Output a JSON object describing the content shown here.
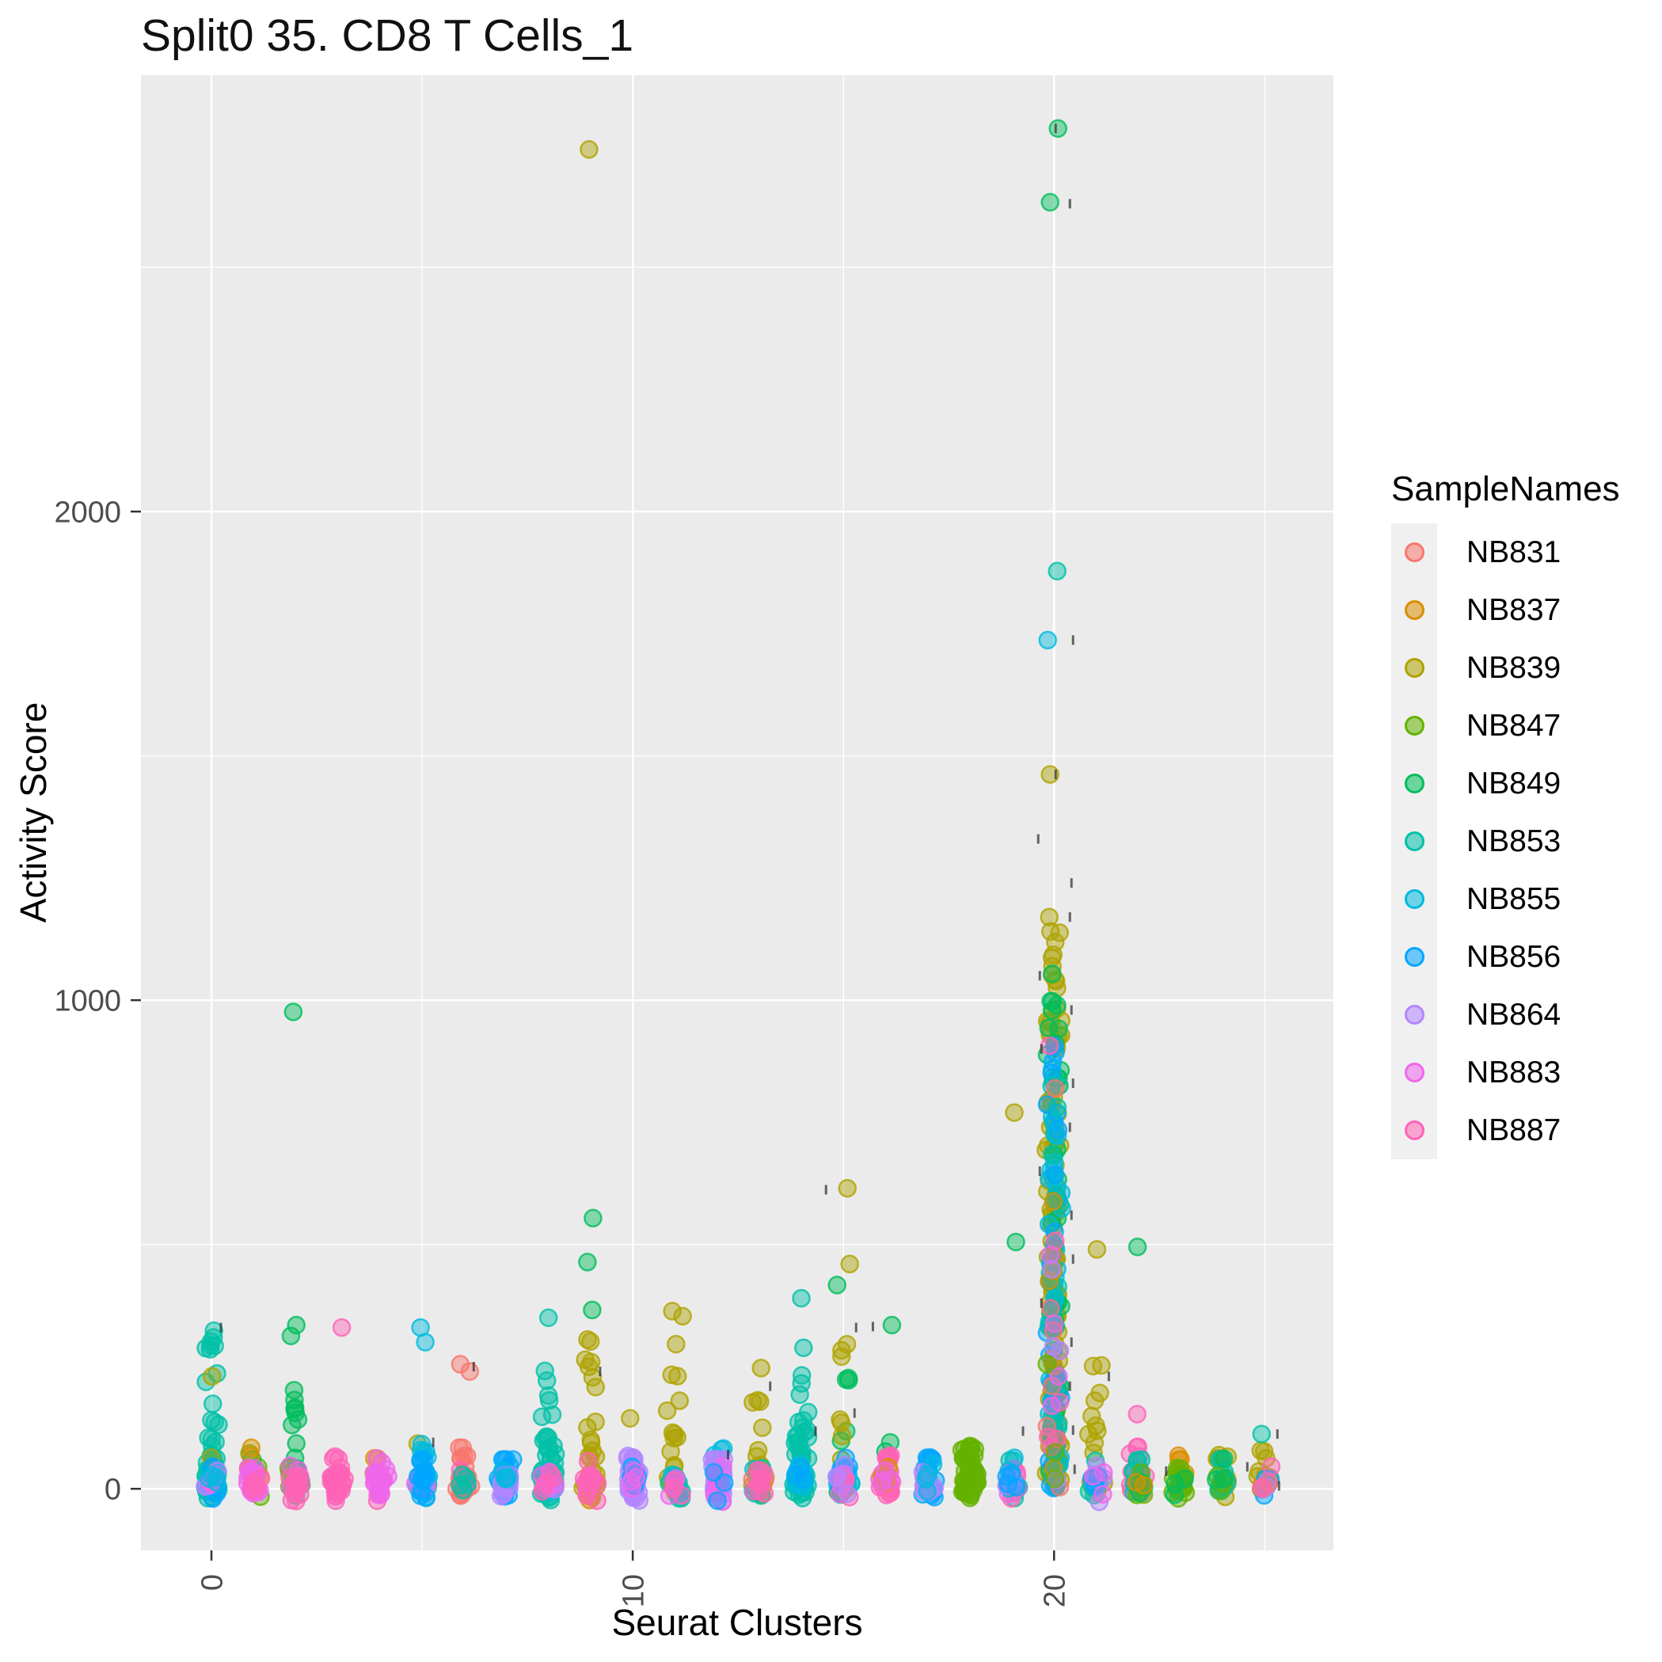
{
  "chart_data": {
    "type": "scatter",
    "variant": "jitter-by-cluster",
    "title": "Split0 35. CD8 T Cells_1",
    "xlabel": "Seurat Clusters",
    "ylabel": "Activity Score",
    "legend_title": "SampleNames",
    "legend_position": "right",
    "grid": "on",
    "x_ticks": [
      {
        "v": 0,
        "label": "0"
      },
      {
        "v": 10,
        "label": "10"
      },
      {
        "v": 20,
        "label": "20"
      }
    ],
    "x_minor_ticks": [
      5,
      15,
      25
    ],
    "y_ticks": [
      {
        "v": 0,
        "label": "0"
      },
      {
        "v": 1000,
        "label": "1000"
      },
      {
        "v": 2000,
        "label": "2000"
      }
    ],
    "y_minor_ticks": [
      500,
      1500,
      2500
    ],
    "x_range": [
      -1.673,
      26.63
    ],
    "y_range": [
      -126,
      2893
    ],
    "style": {
      "panel_bg": "#EBEBEB",
      "grid_color": "#FFFFFF",
      "tick_text_color": "#4D4D4D",
      "axis_tick_color": "#333333",
      "legend_key_bg": "#F0F0F0",
      "point_radius": 10.5,
      "point_fill_alpha": 0.45,
      "point_stroke_alpha": 0.8
    },
    "samples": [
      {
        "name": "NB831",
        "color": "#F8766D"
      },
      {
        "name": "NB837",
        "color": "#DB8E00"
      },
      {
        "name": "NB839",
        "color": "#AEA200"
      },
      {
        "name": "NB847",
        "color": "#64B200"
      },
      {
        "name": "NB849",
        "color": "#00BD5C"
      },
      {
        "name": "NB853",
        "color": "#00C1A7"
      },
      {
        "name": "NB855",
        "color": "#00BADE"
      },
      {
        "name": "NB856",
        "color": "#00A6FF"
      },
      {
        "name": "NB864",
        "color": "#B385FF"
      },
      {
        "name": "NB883",
        "color": "#EF67EB"
      },
      {
        "name": "NB887",
        "color": "#FF63B6"
      }
    ],
    "clusters": [
      {
        "c": 0,
        "groups": [
          [
            "NB853",
            75,
            330,
            0.4
          ],
          [
            "NB839",
            2,
            260,
            0.5
          ],
          [
            "NB856",
            10,
            40,
            0
          ],
          [
            "NB864",
            7,
            35,
            0
          ],
          [
            "NB883",
            4,
            30,
            0
          ],
          [
            "NB855",
            4,
            45,
            0
          ]
        ]
      },
      {
        "c": 1,
        "groups": [
          [
            "NB847",
            6,
            75,
            0.3
          ],
          [
            "NB849",
            4,
            55,
            0.2
          ],
          [
            "NB837",
            8,
            115,
            0.45
          ],
          [
            "NB883",
            28,
            45,
            0
          ],
          [
            "NB887",
            5,
            35,
            0
          ]
        ]
      },
      {
        "c": 2,
        "groups": [
          [
            "NB849",
            24,
            370,
            0.55
          ],
          [
            "NB847",
            3,
            45,
            0
          ],
          [
            "NB883",
            6,
            35,
            0
          ],
          [
            "NB887",
            14,
            55,
            0
          ]
        ]
      },
      {
        "c": 3,
        "groups": [
          [
            "NB849",
            3,
            40,
            0
          ],
          [
            "NB883",
            5,
            35,
            0
          ],
          [
            "NB887",
            32,
            70,
            0.12
          ]
        ]
      },
      {
        "c": 4,
        "groups": [
          [
            "NB837",
            6,
            85,
            0.4
          ],
          [
            "NB887",
            4,
            35,
            0
          ],
          [
            "NB883",
            30,
            65,
            0.1
          ]
        ]
      },
      {
        "c": 5,
        "groups": [
          [
            "NB839",
            2,
            100,
            0.6
          ],
          [
            "NB853",
            8,
            45,
            0
          ],
          [
            "NB855",
            18,
            95,
            0.25
          ],
          [
            "NB883",
            5,
            30,
            0
          ],
          [
            "NB864",
            4,
            28,
            0
          ],
          [
            "NB856",
            14,
            50,
            0.1
          ]
        ]
      },
      {
        "c": 6,
        "groups": [
          [
            "NB831",
            26,
            85,
            0.2
          ],
          [
            "NB887",
            3,
            30,
            0
          ],
          [
            "NB853",
            5,
            40,
            0
          ]
        ]
      },
      {
        "c": 7,
        "groups": [
          [
            "NB856",
            24,
            60,
            0.15
          ],
          [
            "NB864",
            12,
            40,
            0
          ],
          [
            "NB855",
            4,
            30,
            0
          ]
        ]
      },
      {
        "c": 8,
        "groups": [
          [
            "NB853",
            45,
            270,
            0.45
          ],
          [
            "NB855",
            5,
            50,
            0
          ],
          [
            "NB864",
            3,
            25,
            0
          ],
          [
            "NB883",
            6,
            38,
            0
          ],
          [
            "NB887",
            4,
            30,
            0
          ]
        ]
      },
      {
        "c": 9,
        "groups": [
          [
            "NB839",
            34,
            320,
            0.5
          ],
          [
            "NB837",
            3,
            55,
            0
          ],
          [
            "NB883",
            7,
            40,
            0
          ],
          [
            "NB887",
            11,
            55,
            0.05
          ]
        ]
      },
      {
        "c": 10,
        "groups": [
          [
            "NB839",
            2,
            420,
            0.9
          ],
          [
            "NB864",
            38,
            70,
            0.12
          ],
          [
            "NB856",
            5,
            38,
            0
          ],
          [
            "NB883",
            4,
            30,
            0
          ]
        ]
      },
      {
        "c": 11,
        "groups": [
          [
            "NB839",
            28,
            370,
            0.5
          ],
          [
            "NB853",
            7,
            45,
            0
          ],
          [
            "NB855",
            6,
            38,
            0
          ],
          [
            "NB883",
            4,
            28,
            0
          ],
          [
            "NB887",
            3,
            24,
            0
          ]
        ]
      },
      {
        "c": 12,
        "groups": [
          [
            "NB855",
            3,
            85,
            0.6
          ],
          [
            "NB864",
            30,
            60,
            0.1
          ],
          [
            "NB883",
            9,
            40,
            0
          ],
          [
            "NB856",
            3,
            30,
            0
          ]
        ]
      },
      {
        "c": 13,
        "groups": [
          [
            "NB839",
            24,
            260,
            0.45
          ],
          [
            "NB853",
            5,
            45,
            0
          ],
          [
            "NB855",
            4,
            38,
            0
          ],
          [
            "NB831",
            3,
            28,
            0
          ],
          [
            "NB887",
            9,
            42,
            0
          ]
        ]
      },
      {
        "c": 14,
        "groups": [
          [
            "NB853",
            48,
            290,
            0.5
          ],
          [
            "NB855",
            9,
            55,
            0
          ],
          [
            "NB856",
            3,
            35,
            0
          ]
        ]
      },
      {
        "c": 15,
        "groups": [
          [
            "NB849",
            13,
            420,
            0.5
          ],
          [
            "NB839",
            11,
            300,
            0.5
          ],
          [
            "NB853",
            5,
            45,
            0
          ],
          [
            "NB855",
            8,
            60,
            0.1
          ],
          [
            "NB856",
            7,
            70,
            0.15
          ],
          [
            "NB883",
            5,
            35,
            0
          ],
          [
            "NB887",
            4,
            30,
            0
          ],
          [
            "NB864",
            4,
            138,
            0.25
          ]
        ]
      },
      {
        "c": 16,
        "groups": [
          [
            "NB849",
            2,
            100,
            0.5
          ],
          [
            "NB887",
            24,
            70,
            0.15
          ],
          [
            "NB837",
            5,
            55,
            0.2
          ],
          [
            "NB883",
            4,
            30,
            0
          ]
        ]
      },
      {
        "c": 17,
        "groups": [
          [
            "NB856",
            22,
            65,
            0.15
          ],
          [
            "NB864",
            14,
            45,
            0.05
          ],
          [
            "NB855",
            4,
            30,
            0
          ]
        ]
      },
      {
        "c": 18,
        "groups": [
          [
            "NB847",
            55,
            100,
            0.25
          ]
        ]
      },
      {
        "c": 19,
        "groups": [
          [
            "NB853",
            8,
            55,
            0.1
          ],
          [
            "NB883",
            16,
            45,
            0
          ],
          [
            "NB887",
            8,
            40,
            0
          ],
          [
            "NB855",
            6,
            110,
            0.3
          ],
          [
            "NB864",
            5,
            35,
            0
          ],
          [
            "NB856",
            4,
            30,
            0
          ]
        ]
      },
      {
        "c": 20,
        "column": true,
        "groups": [
          [
            "NB839",
            115,
            1150
          ],
          [
            "NB849",
            48,
            1060
          ],
          [
            "NB855",
            38,
            1010
          ],
          [
            "NB856",
            22,
            930
          ],
          [
            "NB853",
            18,
            830
          ],
          [
            "NB837",
            8,
            650
          ],
          [
            "NB831",
            6,
            1030
          ],
          [
            "NB887",
            6,
            910
          ],
          [
            "NB883",
            4,
            600
          ],
          [
            "NB864",
            4,
            500
          ],
          [
            "NB847",
            3,
            300
          ]
        ]
      },
      {
        "c": 21,
        "groups": [
          [
            "NB839",
            14,
            310,
            0.55
          ],
          [
            "NB853",
            7,
            55,
            0.1
          ],
          [
            "NB864",
            6,
            45,
            0
          ],
          [
            "NB856",
            4,
            35,
            0
          ],
          [
            "NB883",
            3,
            28,
            0
          ]
        ]
      },
      {
        "c": 22,
        "groups": [
          [
            "NB887",
            18,
            165,
            0.3
          ],
          [
            "NB853",
            9,
            55,
            0.1
          ],
          [
            "NB847",
            4,
            40,
            0
          ],
          [
            "NB849",
            3,
            60,
            0
          ],
          [
            "NB837",
            2,
            28,
            0
          ]
        ]
      },
      {
        "c": 23,
        "groups": [
          [
            "NB837",
            7,
            85,
            0.35
          ],
          [
            "NB847",
            18,
            65,
            0.1
          ],
          [
            "NB849",
            3,
            45,
            0
          ]
        ]
      },
      {
        "c": 24,
        "groups": [
          [
            "NB839",
            14,
            85,
            0.3
          ],
          [
            "NB853",
            11,
            60,
            0.1
          ],
          [
            "NB847",
            3,
            35,
            0
          ],
          [
            "NB849",
            3,
            100,
            0.4
          ]
        ]
      },
      {
        "c": 25,
        "groups": [
          [
            "NB839",
            11,
            95,
            0.45
          ],
          [
            "NB837",
            4,
            35,
            0
          ],
          [
            "NB856",
            5,
            28,
            0
          ],
          [
            "NB864",
            3,
            22,
            0
          ],
          [
            "NB831",
            2,
            20,
            0
          ],
          [
            "NB887",
            2,
            18,
            0
          ]
        ]
      }
    ],
    "outliers": [
      [
        2,
        976,
        "NB849",
        -3
      ],
      [
        3,
        330,
        "NB887",
        5
      ],
      [
        5,
        330,
        "NB855",
        -2
      ],
      [
        5,
        300,
        "NB855",
        4
      ],
      [
        6,
        255,
        "NB831",
        -5
      ],
      [
        6,
        240,
        "NB831",
        7
      ],
      [
        8,
        350,
        "NB853",
        0
      ],
      [
        9,
        2741,
        "NB839",
        -2
      ],
      [
        9,
        554,
        "NB849",
        3
      ],
      [
        9,
        464,
        "NB849",
        -4
      ],
      [
        9,
        366,
        "NB849",
        2
      ],
      [
        14,
        390,
        "NB853",
        0
      ],
      [
        15,
        615,
        "NB839",
        5
      ],
      [
        15,
        460,
        "NB839",
        8
      ],
      [
        15,
        417,
        "NB849",
        -8
      ],
      [
        16,
        335,
        "NB849",
        8
      ],
      [
        19,
        770,
        "NB839",
        3
      ],
      [
        19,
        505,
        "NB849",
        5
      ],
      [
        20,
        2784,
        "NB849",
        5
      ],
      [
        20,
        2633,
        "NB849",
        -5
      ],
      [
        20,
        1878,
        "NB853",
        4
      ],
      [
        20,
        1737,
        "NB855",
        -8
      ],
      [
        20,
        1462,
        "NB839",
        -5
      ],
      [
        20,
        1170,
        "NB839",
        -6
      ],
      [
        20,
        1093,
        "NB839",
        -1
      ],
      [
        21,
        490,
        "NB839",
        1
      ],
      [
        22,
        495,
        "NB849",
        -1
      ],
      [
        25,
        112,
        "NB853",
        -4
      ]
    ],
    "dash_marks": [
      [
        20,
        2784,
        2
      ],
      [
        20,
        2630,
        20
      ],
      [
        20,
        1737,
        24
      ],
      [
        20,
        1462,
        2
      ],
      [
        20,
        1330,
        -20
      ],
      [
        20,
        1240,
        22
      ],
      [
        20,
        1170,
        20
      ],
      [
        20,
        1050,
        -18
      ],
      [
        20,
        980,
        22
      ],
      [
        20,
        900,
        -16
      ],
      [
        20,
        830,
        24
      ],
      [
        20,
        740,
        20
      ],
      [
        20,
        650,
        -18
      ],
      [
        20,
        560,
        22
      ],
      [
        20,
        470,
        24
      ],
      [
        20,
        380,
        -16
      ],
      [
        20,
        300,
        22
      ],
      [
        20,
        210,
        20
      ],
      [
        20,
        120,
        24
      ],
      [
        20,
        40,
        26
      ],
      [
        15,
        612,
        -22
      ],
      [
        15,
        330,
        16
      ],
      [
        15,
        155,
        14
      ],
      [
        16,
        332,
        -16
      ],
      [
        13,
        210,
        14
      ],
      [
        14,
        118,
        18
      ],
      [
        12,
        70,
        14
      ],
      [
        19,
        118,
        14
      ],
      [
        21,
        230,
        16
      ],
      [
        23,
        36,
        -18
      ],
      [
        25,
        112,
        16
      ],
      [
        25,
        45,
        -22
      ],
      [
        25,
        6,
        18
      ],
      [
        0,
        330,
        12
      ],
      [
        5,
        95,
        14
      ],
      [
        6,
        250,
        12
      ],
      [
        9,
        240,
        12
      ]
    ]
  }
}
